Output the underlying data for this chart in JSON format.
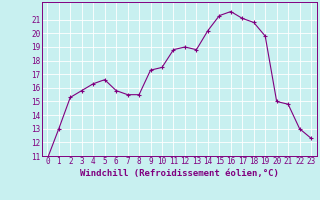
{
  "x": [
    0,
    1,
    2,
    3,
    4,
    5,
    6,
    7,
    8,
    9,
    10,
    11,
    12,
    13,
    14,
    15,
    16,
    17,
    18,
    19,
    20,
    21,
    22,
    23
  ],
  "y": [
    10.8,
    13.0,
    15.3,
    15.8,
    16.3,
    16.6,
    15.8,
    15.5,
    15.5,
    17.3,
    17.5,
    18.8,
    19.0,
    18.8,
    20.2,
    21.3,
    21.6,
    21.1,
    20.8,
    19.8,
    15.0,
    14.8,
    13.0,
    12.3
  ],
  "xlabel": "Windchill (Refroidissement éolien,°C)",
  "ylim": [
    11,
    22
  ],
  "xlim": [
    -0.5,
    23.5
  ],
  "yticks": [
    11,
    12,
    13,
    14,
    15,
    16,
    17,
    18,
    19,
    20,
    21
  ],
  "line_color": "#800080",
  "bg_color": "#c8f0f0",
  "grid_color": "#b0e0e0",
  "spine_color": "#800080",
  "tick_label_color": "#800080",
  "xlabel_color": "#800080",
  "tick_fontsize": 5.5,
  "xlabel_fontsize": 6.5,
  "linewidth": 0.8,
  "markersize": 3.0,
  "markeredgewidth": 0.8
}
